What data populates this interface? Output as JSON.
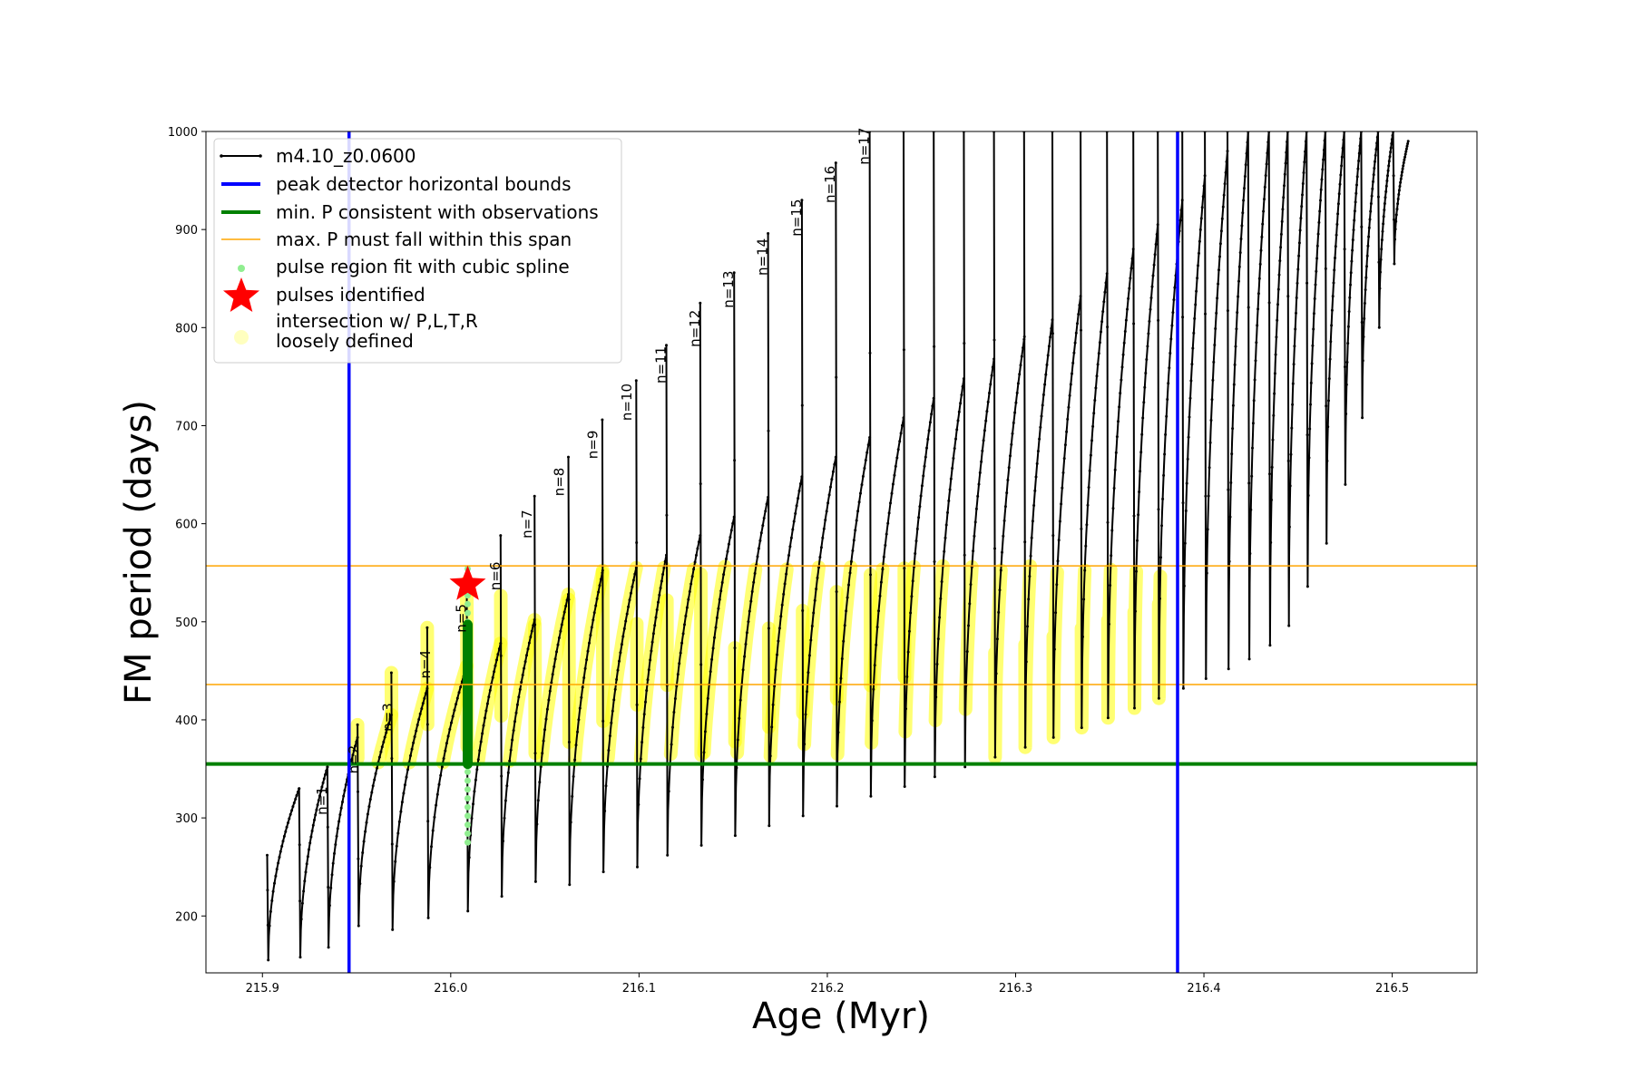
{
  "chart_data": {
    "type": "line",
    "xlabel": "Age (Myr)",
    "ylabel": "FM period (days)",
    "xlim": [
      215.87,
      216.545
    ],
    "ylim": [
      142,
      1000
    ],
    "xticks": [
      215.9,
      216.0,
      216.1,
      216.2,
      216.3,
      216.4,
      216.5
    ],
    "xtick_labels": [
      "215.9",
      "216.0",
      "216.1",
      "216.2",
      "216.3",
      "216.4",
      "216.5"
    ],
    "yticks": [
      200,
      300,
      400,
      500,
      600,
      700,
      800,
      900,
      1000
    ],
    "ytick_labels": [
      "200",
      "300",
      "400",
      "500",
      "600",
      "700",
      "800",
      "900",
      "1000"
    ],
    "grid": false,
    "legend_position": "top-left",
    "legend": [
      {
        "label": "m4.10_z0.0600",
        "style": "black-line-dots"
      },
      {
        "label": "peak detector horizontal bounds",
        "style": "blue-line"
      },
      {
        "label": "min. P consistent with observations",
        "style": "green-line"
      },
      {
        "label": "max. P must fall within this span",
        "style": "orange-line"
      },
      {
        "label": "pulse region fit with cubic spline",
        "style": "lightgreen-dot"
      },
      {
        "label": "pulses identified",
        "style": "red-star"
      },
      {
        "label": "intersection w/ P,L,T,R\nloosely defined",
        "style": "yellow-dot"
      }
    ],
    "vertical_bounds": [
      215.946,
      216.386
    ],
    "min_period_line": 355,
    "max_period_span": [
      436,
      557
    ],
    "pulse_identified": {
      "x": 216.009,
      "y": 538
    },
    "spline_region": {
      "x": 216.009,
      "y_range": [
        275,
        560
      ]
    },
    "green_fit_segment": {
      "x": 216.009,
      "y_range": [
        355,
        497
      ]
    },
    "pulse_labels": [
      {
        "label": "n=1",
        "x": 215.934,
        "y": 303
      },
      {
        "label": "n=2",
        "x": 215.951,
        "y": 345
      },
      {
        "label": "n=3",
        "x": 215.969,
        "y": 388
      },
      {
        "label": "n=4",
        "x": 215.989,
        "y": 442
      },
      {
        "label": "n=5",
        "x": 216.008,
        "y": 489
      },
      {
        "label": "n=6",
        "x": 216.026,
        "y": 532
      },
      {
        "label": "n=7",
        "x": 216.043,
        "y": 585
      },
      {
        "label": "n=8",
        "x": 216.06,
        "y": 628
      },
      {
        "label": "n=9",
        "x": 216.078,
        "y": 666
      },
      {
        "label": "n=10",
        "x": 216.096,
        "y": 705
      },
      {
        "label": "n=11",
        "x": 216.114,
        "y": 743
      },
      {
        "label": "n=12",
        "x": 216.132,
        "y": 780
      },
      {
        "label": "n=13",
        "x": 216.15,
        "y": 820
      },
      {
        "label": "n=14",
        "x": 216.168,
        "y": 853
      },
      {
        "label": "n=15",
        "x": 216.186,
        "y": 893
      },
      {
        "label": "n=16",
        "x": 216.204,
        "y": 927
      },
      {
        "label": "n=17",
        "x": 216.222,
        "y": 966
      }
    ],
    "series": [
      {
        "name": "m4.10_z0.0600",
        "cycles": [
          {
            "x0": 215.9025,
            "x1": 215.9195,
            "y_start": 262,
            "y_min": 155,
            "y_peak": 330
          },
          {
            "x0": 215.9195,
            "x1": 215.9345,
            "y_start": 330,
            "y_min": 158,
            "y_peak": 352
          },
          {
            "x0": 215.9345,
            "x1": 215.9505,
            "y_start": 352,
            "y_min": 168,
            "y_peak": 382
          },
          {
            "x0": 215.9505,
            "x1": 215.9685,
            "y_start": 395,
            "y_min": 190,
            "y_peak": 405
          },
          {
            "x0": 215.9685,
            "x1": 215.9875,
            "y_start": 448,
            "y_min": 186,
            "y_peak": 432
          },
          {
            "x0": 215.9875,
            "x1": 216.0085,
            "y_start": 494,
            "y_min": 198,
            "y_peak": 455
          },
          {
            "x0": 216.0085,
            "x1": 216.0265,
            "y_start": 540,
            "y_min": 205,
            "y_peak": 478
          },
          {
            "x0": 216.0265,
            "x1": 216.0445,
            "y_start": 588,
            "y_min": 220,
            "y_peak": 502
          },
          {
            "x0": 216.0445,
            "x1": 216.0625,
            "y_start": 628,
            "y_min": 235,
            "y_peak": 528
          },
          {
            "x0": 216.0625,
            "x1": 216.0805,
            "y_start": 668,
            "y_min": 232,
            "y_peak": 550
          },
          {
            "x0": 216.0805,
            "x1": 216.0985,
            "y_start": 706,
            "y_min": 245,
            "y_peak": 555
          },
          {
            "x0": 216.0985,
            "x1": 216.1145,
            "y_start": 746,
            "y_min": 250,
            "y_peak": 568
          },
          {
            "x0": 216.1145,
            "x1": 216.1325,
            "y_start": 782,
            "y_min": 262,
            "y_peak": 588
          },
          {
            "x0": 216.1325,
            "x1": 216.1505,
            "y_start": 825,
            "y_min": 272,
            "y_peak": 607
          },
          {
            "x0": 216.1505,
            "x1": 216.1685,
            "y_start": 856,
            "y_min": 282,
            "y_peak": 627
          },
          {
            "x0": 216.1685,
            "x1": 216.1865,
            "y_start": 896,
            "y_min": 292,
            "y_peak": 648
          },
          {
            "x0": 216.1865,
            "x1": 216.2045,
            "y_start": 930,
            "y_min": 302,
            "y_peak": 668
          },
          {
            "x0": 216.2045,
            "x1": 216.2225,
            "y_start": 968,
            "y_min": 312,
            "y_peak": 688
          },
          {
            "x0": 216.2225,
            "x1": 216.2405,
            "y_start": 1000,
            "y_min": 322,
            "y_peak": 708
          },
          {
            "x0": 216.2405,
            "x1": 216.2565,
            "y_start": 1000,
            "y_min": 332,
            "y_peak": 728
          },
          {
            "x0": 216.2565,
            "x1": 216.2725,
            "y_start": 1000,
            "y_min": 342,
            "y_peak": 748
          },
          {
            "x0": 216.2725,
            "x1": 216.2885,
            "y_start": 1000,
            "y_min": 352,
            "y_peak": 768
          },
          {
            "x0": 216.2885,
            "x1": 216.3045,
            "y_start": 1000,
            "y_min": 362,
            "y_peak": 788
          },
          {
            "x0": 216.3045,
            "x1": 216.3195,
            "y_start": 1000,
            "y_min": 372,
            "y_peak": 808
          },
          {
            "x0": 216.3195,
            "x1": 216.3345,
            "y_start": 1000,
            "y_min": 382,
            "y_peak": 832
          },
          {
            "x0": 216.3345,
            "x1": 216.3485,
            "y_start": 1000,
            "y_min": 392,
            "y_peak": 855
          },
          {
            "x0": 216.3485,
            "x1": 216.3625,
            "y_start": 1000,
            "y_min": 402,
            "y_peak": 880
          },
          {
            "x0": 216.3625,
            "x1": 216.3755,
            "y_start": 1000,
            "y_min": 412,
            "y_peak": 905
          },
          {
            "x0": 216.3755,
            "x1": 216.3885,
            "y_start": 1000,
            "y_min": 422,
            "y_peak": 930
          },
          {
            "x0": 216.3885,
            "x1": 216.4005,
            "y_start": 1000,
            "y_min": 432,
            "y_peak": 955
          },
          {
            "x0": 216.4005,
            "x1": 216.4125,
            "y_start": 1000,
            "y_min": 442,
            "y_peak": 980
          },
          {
            "x0": 216.4125,
            "x1": 216.4235,
            "y_start": 1000,
            "y_min": 452,
            "y_peak": 1000
          },
          {
            "x0": 216.4235,
            "x1": 216.4345,
            "y_start": 1000,
            "y_min": 462,
            "y_peak": 1000
          },
          {
            "x0": 216.4345,
            "x1": 216.4445,
            "y_start": 1000,
            "y_min": 476,
            "y_peak": 1000
          },
          {
            "x0": 216.4445,
            "x1": 216.4545,
            "y_start": 1000,
            "y_min": 496,
            "y_peak": 1000
          },
          {
            "x0": 216.4545,
            "x1": 216.4645,
            "y_start": 1000,
            "y_min": 536,
            "y_peak": 1000
          },
          {
            "x0": 216.4645,
            "x1": 216.4745,
            "y_start": 1000,
            "y_min": 580,
            "y_peak": 1000
          },
          {
            "x0": 216.4745,
            "x1": 216.4835,
            "y_start": 1000,
            "y_min": 640,
            "y_peak": 1000
          },
          {
            "x0": 216.4835,
            "x1": 216.4925,
            "y_start": 1000,
            "y_min": 708,
            "y_peak": 1000
          },
          {
            "x0": 216.4925,
            "x1": 216.5005,
            "y_start": 1000,
            "y_min": 800,
            "y_peak": 1000
          },
          {
            "x0": 216.5005,
            "x1": 216.5085,
            "y_start": 1000,
            "y_min": 865,
            "y_peak": 990
          }
        ]
      }
    ]
  },
  "colors": {
    "series": "#000000",
    "bounds": "#0000ff",
    "min_period": "#008000",
    "max_span": "#ffa500",
    "spline": "#90ee90",
    "pulse": "#ff0000",
    "intersection": "#ffff00"
  }
}
